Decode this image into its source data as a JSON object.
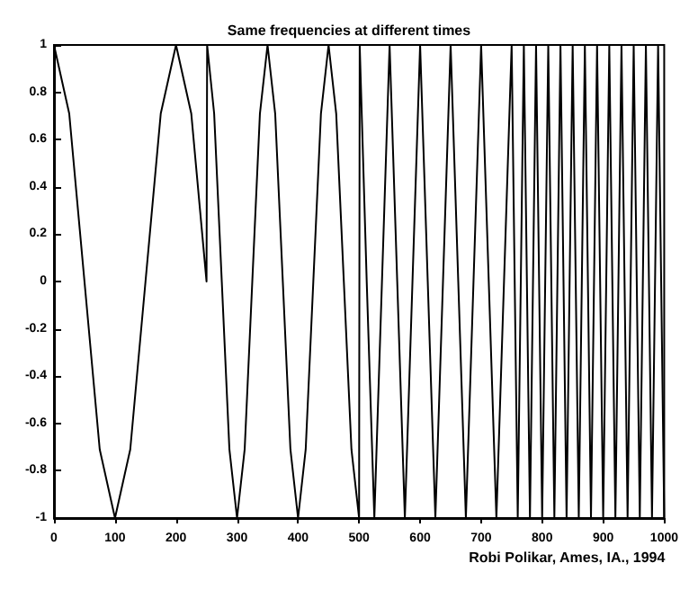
{
  "chart_data": {
    "type": "line",
    "title": "Same frequencies at different times",
    "x": [
      0,
      25,
      50,
      75,
      100,
      125,
      150,
      175,
      200,
      225,
      250,
      251,
      262.5,
      275,
      287.5,
      300,
      312.5,
      325,
      337.5,
      350,
      362.5,
      375,
      387.5,
      400,
      412.5,
      425,
      437.5,
      450,
      462.5,
      475,
      487.5,
      500,
      501,
      512.5,
      525,
      537.5,
      550,
      562.5,
      575,
      587.5,
      600,
      612.5,
      625,
      637.5,
      650,
      662.5,
      675,
      687.5,
      700,
      712.5,
      725,
      737.5,
      750,
      760,
      770,
      780,
      790,
      800,
      810,
      820,
      830,
      840,
      850,
      860,
      870,
      880,
      890,
      900,
      910,
      920,
      930,
      940,
      950,
      960,
      970,
      980,
      990,
      1000
    ],
    "series": [
      {
        "color": "#000000",
        "values": [
          1,
          0.71,
          0,
          -0.71,
          -1,
          -0.71,
          0,
          0.71,
          1,
          0.71,
          0,
          1,
          0.71,
          0,
          -0.71,
          -1,
          -0.71,
          0,
          0.71,
          1,
          0.71,
          0,
          -0.71,
          -1,
          -0.71,
          0,
          0.71,
          1,
          0.71,
          0,
          -0.71,
          -1,
          1,
          0,
          -1,
          0,
          1,
          0,
          -1,
          0,
          1,
          0,
          -1,
          0,
          1,
          0,
          -1,
          0,
          1,
          0,
          -1,
          0,
          1,
          -1,
          1,
          -1,
          1,
          -1,
          1,
          -1,
          1,
          -1,
          1,
          -1,
          1,
          -1,
          1,
          -1,
          1,
          -1,
          1,
          -1,
          1,
          -1,
          1,
          -1,
          1,
          -1
        ]
      }
    ],
    "xlim": [
      0,
      1000
    ],
    "xticks": [
      0,
      100,
      200,
      300,
      400,
      500,
      600,
      700,
      800,
      900,
      1000
    ],
    "ylim": [
      -1,
      1
    ],
    "yticks": [
      -1,
      -0.8,
      -0.6,
      -0.4,
      -0.2,
      0,
      0.2,
      0.4,
      0.6,
      0.8,
      1
    ],
    "grid": false,
    "marker": "none",
    "line_style": "solid",
    "annotations": [
      "Robi Polikar, Ames, IA., 1994"
    ]
  }
}
